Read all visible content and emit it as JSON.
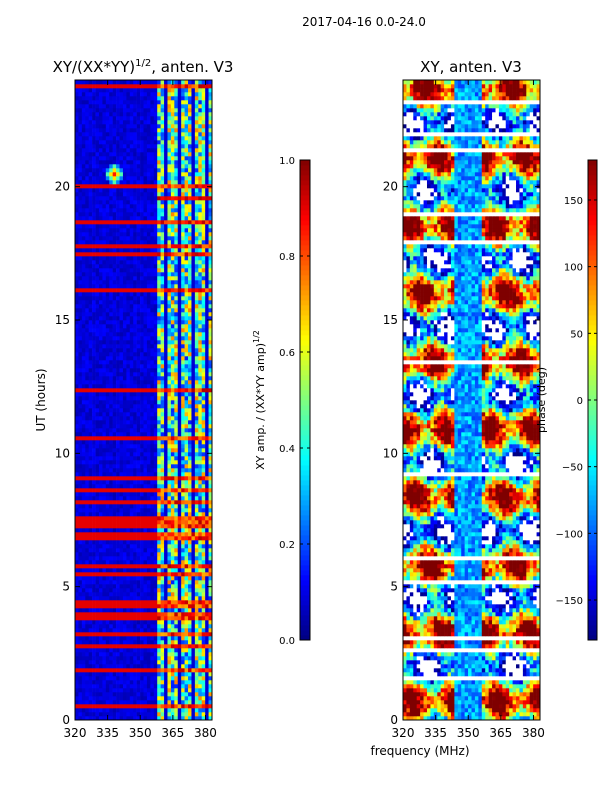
{
  "figure": {
    "suptitle": "2017-04-16 0.0-24.0",
    "shared_xlabel": "frequency (MHz)"
  },
  "colors": {
    "jet_stops": [
      "#00007f",
      "#0000ff",
      "#007fff",
      "#00ffff",
      "#7fff7f",
      "#ffff00",
      "#ff7f00",
      "#ff0000",
      "#7f0000"
    ],
    "axis": "#000000",
    "background": "#ffffff",
    "line": "#111111"
  },
  "chart_data": [
    {
      "type": "heatmap",
      "title_main": "XY/(XX*YY)",
      "title_sup": "1/2",
      "title_tail": ", anten. V3",
      "xlabel": "",
      "ylabel": "UT (hours)",
      "xlim": [
        320,
        383
      ],
      "ylim": [
        0,
        24
      ],
      "xticks": [
        "320",
        "335",
        "350",
        "365",
        "380"
      ],
      "xtick_values": [
        320,
        335,
        350,
        365,
        380
      ],
      "yticks": [
        "0",
        "5",
        "10",
        "15",
        "20"
      ],
      "ytick_values": [
        0,
        5,
        10,
        15,
        20
      ],
      "colorbar": {
        "label_main": "XY amp. / (XX*YY amp)",
        "label_sup": "1/2",
        "range": [
          0.0,
          1.0
        ],
        "ticks": [
          "0.0",
          "0.2",
          "0.4",
          "0.6",
          "0.8",
          "1.0"
        ],
        "tick_values": [
          0.0,
          0.2,
          0.4,
          0.6,
          0.8,
          1.0
        ],
        "colormap": "jet"
      },
      "features": {
        "background_level": 0.05,
        "high_band_start_mhz": 359,
        "high_band_level": 0.45,
        "bright_rows_hours": [
          0.5,
          1.9,
          2.7,
          3.2,
          3.8,
          4.0,
          4.2,
          4.4,
          5.4,
          5.8,
          6.8,
          7.0,
          7.2,
          7.4,
          7.6,
          8.2,
          8.6,
          9.1,
          10.5,
          12.3,
          16.2,
          17.5,
          17.8,
          18.7,
          20.0,
          23.8
        ],
        "saturated_band_rows_hours": [
          4.2,
          5.4,
          7.2,
          7.4,
          12.3,
          19.5
        ],
        "spot": {
          "hour": 20.4,
          "mhz": 338,
          "level": 0.85
        }
      }
    },
    {
      "type": "heatmap",
      "title": "XY, anten. V3",
      "xlabel": "frequency (MHz)",
      "ylabel": "",
      "xlim": [
        320,
        383
      ],
      "ylim": [
        0,
        24
      ],
      "xticks": [
        "320",
        "335",
        "350",
        "365",
        "380"
      ],
      "xtick_values": [
        320,
        335,
        350,
        365,
        380
      ],
      "yticks": [
        "0",
        "5",
        "10",
        "15",
        "20"
      ],
      "ytick_values": [
        0,
        5,
        10,
        15,
        20
      ],
      "colorbar": {
        "label": "phase (deg)",
        "range": [
          -180,
          180
        ],
        "ticks": [
          "−150",
          "−100",
          "−50",
          "0",
          "50",
          "100",
          "150"
        ],
        "tick_values": [
          -150,
          -100,
          -50,
          0,
          50,
          100,
          150
        ],
        "colormap": "jet"
      },
      "features": {
        "blue_band_mhz": [
          345,
          355
        ],
        "white_gap_rows_hours": [
          1.5,
          2.6,
          3.0,
          5.1,
          6.0,
          9.2,
          13.4,
          17.9,
          18.9,
          21.3,
          22.0,
          23.2
        ]
      }
    }
  ]
}
